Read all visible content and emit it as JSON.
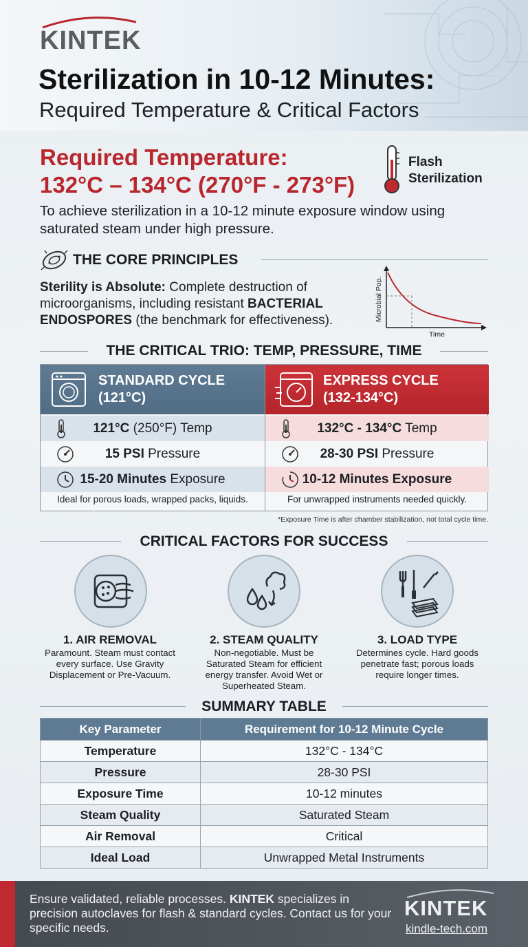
{
  "brand": {
    "logo": "KINTEK",
    "url": "kindle-tech.com"
  },
  "header": {
    "title": "Sterilization in 10-12 Minutes:",
    "subtitle": "Required Temperature & Critical Factors"
  },
  "requirement": {
    "line1": "Required Temperature:",
    "line2": "132°C – 134°C (270°F - 273°F)",
    "badge_line1": "Flash",
    "badge_line2": "Sterilization",
    "intro": "To achieve sterilization in a 10-12 minute exposure window using saturated steam under high pressure."
  },
  "core": {
    "heading": "THE CORE PRINCIPLES",
    "lead": "Sterility is Absolute:",
    "text1": " Complete destruction of microorganisms, including resistant ",
    "highlight": "BACTERIAL ENDOSPORES",
    "text2": " (the benchmark for effectiveness).",
    "chart_ylabel": "Microbial Pop.",
    "chart_xlabel": "Time"
  },
  "trio": {
    "heading": "THE CRITICAL TRIO: TEMP, PRESSURE, TIME",
    "standard": {
      "line1": "STANDARD CYCLE",
      "line2": "(121°C)",
      "temp_value": "121°C",
      "temp_rest": " (250°F) Temp",
      "pressure_value": "15 PSI",
      "pressure_rest": " Pressure",
      "time_value": "15-20 Minutes",
      "time_rest": " Exposure",
      "note": "Ideal for porous loads, wrapped packs, liquids."
    },
    "express": {
      "line1": "EXPRESS CYCLE",
      "line2": "(132-134°C)",
      "temp_value": "132°C - 134°C",
      "temp_rest": " Temp",
      "pressure_value": "28-30 PSI",
      "pressure_rest": " Pressure",
      "time_value": "10-12 Minutes Exposure",
      "time_rest": "",
      "note": "For unwrapped instruments needed quickly."
    },
    "footnote": "*Exposure Time is after chamber stabilization, not total cycle time."
  },
  "factors": {
    "heading": "CRITICAL FACTORS FOR SUCCESS",
    "items": [
      {
        "title": "1. AIR REMOVAL",
        "text": "Paramount. Steam must contact every surface. Use Gravity Displacement or Pre-Vacuum.",
        "icon": "air-removal-icon"
      },
      {
        "title": "2. STEAM QUALITY",
        "text": "Non-negotiable. Must be Saturated Steam for efficient energy transfer. Avoid Wet or Superheated Steam.",
        "icon": "steam-icon"
      },
      {
        "title": "3. LOAD TYPE",
        "text": "Determines cycle. Hard goods penetrate fast; porous loads require longer times.",
        "icon": "tools-icon"
      }
    ]
  },
  "summary": {
    "heading": "SUMMARY TABLE",
    "col1": "Key Parameter",
    "col2": "Requirement for 10-12 Minute Cycle",
    "rows": [
      {
        "k": "Temperature",
        "v": "132°C - 134°C"
      },
      {
        "k": "Pressure",
        "v": "28-30 PSI"
      },
      {
        "k": "Exposure Time",
        "v": "10-12 minutes"
      },
      {
        "k": "Steam Quality",
        "v": "Saturated Steam"
      },
      {
        "k": "Air Removal",
        "v": "Critical"
      },
      {
        "k": "Ideal Load",
        "v": "Unwrapped Metal Instruments"
      }
    ]
  },
  "footer": {
    "text1": "Ensure validated, reliable processes. ",
    "brand": "KINTEK",
    "text2": " specializes in precision autoclaves for flash & standard cycles. Contact us for your specific needs."
  },
  "colors": {
    "accent_red": "#b8272d",
    "slate": "#5f7b93"
  }
}
